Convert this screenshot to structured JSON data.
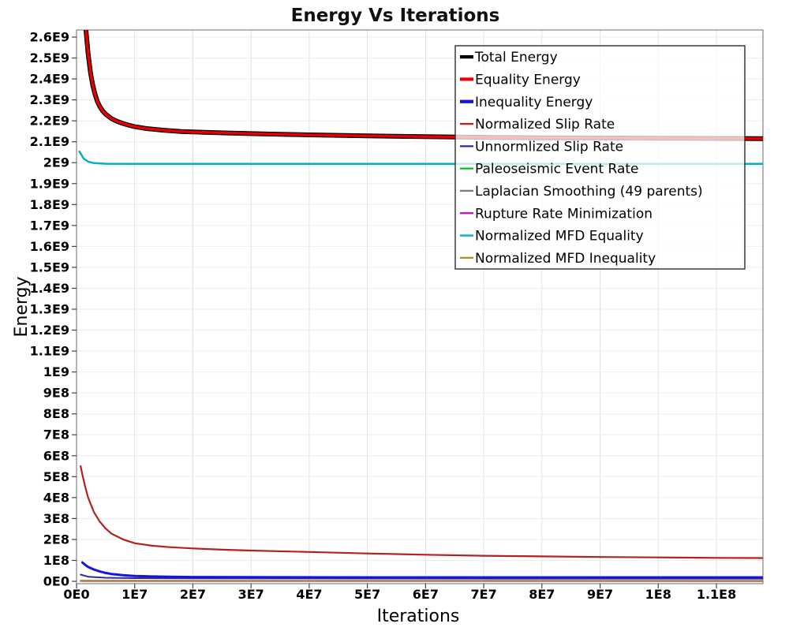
{
  "chart_data": {
    "type": "line",
    "title": "Energy Vs Iterations",
    "xlabel": "Iterations",
    "ylabel": "Energy",
    "xlim": [
      0,
      118000000.0
    ],
    "ylim": [
      -11300000.0,
      2634000000.0
    ],
    "grid": true,
    "legend_position": "top-right-inside",
    "x_ticks": [
      {
        "v": 0,
        "label": "0E0"
      },
      {
        "v": 10000000.0,
        "label": "1E7"
      },
      {
        "v": 20000000.0,
        "label": "2E7"
      },
      {
        "v": 30000000.0,
        "label": "3E7"
      },
      {
        "v": 40000000.0,
        "label": "4E7"
      },
      {
        "v": 50000000.0,
        "label": "5E7"
      },
      {
        "v": 60000000.0,
        "label": "6E7"
      },
      {
        "v": 70000000.0,
        "label": "7E7"
      },
      {
        "v": 80000000.0,
        "label": "8E7"
      },
      {
        "v": 90000000.0,
        "label": "9E7"
      },
      {
        "v": 100000000.0,
        "label": "1E8"
      },
      {
        "v": 110000000.0,
        "label": "1.1E8"
      }
    ],
    "y_ticks": [
      {
        "v": 0,
        "label": "0E0"
      },
      {
        "v": 100000000.0,
        "label": "1E8"
      },
      {
        "v": 200000000.0,
        "label": "2E8"
      },
      {
        "v": 300000000.0,
        "label": "3E8"
      },
      {
        "v": 400000000.0,
        "label": "4E8"
      },
      {
        "v": 500000000.0,
        "label": "5E8"
      },
      {
        "v": 600000000.0,
        "label": "6E8"
      },
      {
        "v": 700000000.0,
        "label": "7E8"
      },
      {
        "v": 800000000.0,
        "label": "8E8"
      },
      {
        "v": 900000000.0,
        "label": "9E8"
      },
      {
        "v": 1000000000.0,
        "label": "1E9"
      },
      {
        "v": 1100000000.0,
        "label": "1.1E9"
      },
      {
        "v": 1200000000.0,
        "label": "1.2E9"
      },
      {
        "v": 1300000000.0,
        "label": "1.3E9"
      },
      {
        "v": 1400000000.0,
        "label": "1.4E9"
      },
      {
        "v": 1500000000.0,
        "label": "1.5E9"
      },
      {
        "v": 1600000000.0,
        "label": "1.6E9"
      },
      {
        "v": 1700000000.0,
        "label": "1.7E9"
      },
      {
        "v": 1800000000.0,
        "label": "1.8E9"
      },
      {
        "v": 1900000000.0,
        "label": "1.9E9"
      },
      {
        "v": 2000000000.0,
        "label": "2E9"
      },
      {
        "v": 2100000000.0,
        "label": "2.1E9"
      },
      {
        "v": 2200000000.0,
        "label": "2.2E9"
      },
      {
        "v": 2300000000.0,
        "label": "2.3E9"
      },
      {
        "v": 2400000000.0,
        "label": "2.4E9"
      },
      {
        "v": 2500000000.0,
        "label": "2.5E9"
      },
      {
        "v": 2600000000.0,
        "label": "2.6E9"
      }
    ],
    "series": [
      {
        "name": "Total Energy",
        "color": "#000000",
        "width": 6,
        "zorder": 8,
        "points": [
          [
            1000000.0,
            2920000000.0
          ],
          [
            1300000.0,
            2760000000.0
          ],
          [
            1600000.0,
            2640000000.0
          ],
          [
            2000000.0,
            2520000000.0
          ],
          [
            2400000.0,
            2430000000.0
          ],
          [
            2800000.0,
            2370000000.0
          ],
          [
            3200000.0,
            2325000000.0
          ],
          [
            3600000.0,
            2292000000.0
          ],
          [
            4000000.0,
            2268000000.0
          ],
          [
            4500000.0,
            2247000000.0
          ],
          [
            5000000.0,
            2232000000.0
          ],
          [
            6000000.0,
            2211000000.0
          ],
          [
            7000000.0,
            2197000000.0
          ],
          [
            8000000.0,
            2187000000.0
          ],
          [
            9000000.0,
            2179000000.0
          ],
          [
            10000000.0,
            2172000000.0
          ],
          [
            12000000.0,
            2163000000.0
          ],
          [
            15000000.0,
            2155000000.0
          ],
          [
            18000000.0,
            2149000000.0
          ],
          [
            22000000.0,
            2145000000.0
          ],
          [
            26000000.0,
            2142000000.0
          ],
          [
            30000000.0,
            2139000000.0
          ],
          [
            35000000.0,
            2136000000.0
          ],
          [
            40000000.0,
            2133000000.0
          ],
          [
            50000000.0,
            2128000000.0
          ],
          [
            60000000.0,
            2124000000.0
          ],
          [
            70000000.0,
            2121000000.0
          ],
          [
            80000000.0,
            2119000000.0
          ],
          [
            90000000.0,
            2118000000.0
          ],
          [
            100000000.0,
            2117000000.0
          ],
          [
            110000000.0,
            2116000000.0
          ],
          [
            118000000.0,
            2115000000.0
          ]
        ]
      },
      {
        "name": "Equality Energy",
        "color": "#e80000",
        "width": 3.5,
        "zorder": 9,
        "points": [
          [
            1000000.0,
            2920000000.0
          ],
          [
            1300000.0,
            2760000000.0
          ],
          [
            1600000.0,
            2640000000.0
          ],
          [
            2000000.0,
            2520000000.0
          ],
          [
            2400000.0,
            2430000000.0
          ],
          [
            2800000.0,
            2370000000.0
          ],
          [
            3200000.0,
            2325000000.0
          ],
          [
            3600000.0,
            2292000000.0
          ],
          [
            4000000.0,
            2268000000.0
          ],
          [
            4500000.0,
            2247000000.0
          ],
          [
            5000000.0,
            2232000000.0
          ],
          [
            6000000.0,
            2211000000.0
          ],
          [
            7000000.0,
            2197000000.0
          ],
          [
            8000000.0,
            2187000000.0
          ],
          [
            9000000.0,
            2179000000.0
          ],
          [
            10000000.0,
            2172000000.0
          ],
          [
            12000000.0,
            2163000000.0
          ],
          [
            15000000.0,
            2155000000.0
          ],
          [
            18000000.0,
            2149000000.0
          ],
          [
            22000000.0,
            2145000000.0
          ],
          [
            26000000.0,
            2142000000.0
          ],
          [
            30000000.0,
            2139000000.0
          ],
          [
            35000000.0,
            2136000000.0
          ],
          [
            40000000.0,
            2133000000.0
          ],
          [
            50000000.0,
            2128000000.0
          ],
          [
            60000000.0,
            2124000000.0
          ],
          [
            70000000.0,
            2121000000.0
          ],
          [
            80000000.0,
            2119000000.0
          ],
          [
            90000000.0,
            2118000000.0
          ],
          [
            100000000.0,
            2117000000.0
          ],
          [
            110000000.0,
            2116000000.0
          ],
          [
            118000000.0,
            2115000000.0
          ]
        ]
      },
      {
        "name": "Inequality Energy",
        "color": "#1414dc",
        "width": 3,
        "zorder": 7,
        "points": [
          [
            1000000.0,
            90000000.0
          ],
          [
            1500000.0,
            78000000.0
          ],
          [
            2000000.0,
            69000000.0
          ],
          [
            3000000.0,
            56000000.0
          ],
          [
            4000000.0,
            47000000.0
          ],
          [
            5000000.0,
            40000000.0
          ],
          [
            6000000.0,
            35000000.0
          ],
          [
            8000000.0,
            29000000.0
          ],
          [
            10000000.0,
            25500000.0
          ],
          [
            13000000.0,
            23000000.0
          ],
          [
            16000000.0,
            21500000.0
          ],
          [
            20000000.0,
            20500000.0
          ],
          [
            30000000.0,
            19500000.0
          ],
          [
            50000000.0,
            19000000.0
          ],
          [
            80000000.0,
            18800000.0
          ],
          [
            118000000.0,
            18700000.0
          ]
        ]
      },
      {
        "name": "Normalized Slip Rate",
        "color": "#b22222",
        "width": 2.2,
        "zorder": 6,
        "points": [
          [
            700000.0,
            550000000.0
          ],
          [
            1000000.0,
            510000000.0
          ],
          [
            1500000.0,
            450000000.0
          ],
          [
            2000000.0,
            400000000.0
          ],
          [
            3000000.0,
            330000000.0
          ],
          [
            4000000.0,
            285000000.0
          ],
          [
            5000000.0,
            252000000.0
          ],
          [
            6000000.0,
            228000000.0
          ],
          [
            8000000.0,
            200000000.0
          ],
          [
            10000000.0,
            182000000.0
          ],
          [
            13000000.0,
            170000000.0
          ],
          [
            16000000.0,
            163000000.0
          ],
          [
            20000000.0,
            157000000.0
          ],
          [
            25000000.0,
            151000000.0
          ],
          [
            30000000.0,
            147000000.0
          ],
          [
            40000000.0,
            140000000.0
          ],
          [
            50000000.0,
            133000000.0
          ],
          [
            60000000.0,
            127000000.0
          ],
          [
            70000000.0,
            122000000.0
          ],
          [
            80000000.0,
            119000000.0
          ],
          [
            90000000.0,
            116000000.0
          ],
          [
            100000000.0,
            114000000.0
          ],
          [
            110000000.0,
            112000000.0
          ],
          [
            118000000.0,
            111000000.0
          ]
        ]
      },
      {
        "name": "Unnormlized Slip Rate",
        "color": "#2a2a9c",
        "width": 2,
        "zorder": 5,
        "points": [
          [
            700000.0,
            32000000.0
          ],
          [
            2000000.0,
            22000000.0
          ],
          [
            5000000.0,
            17000000.0
          ],
          [
            10000000.0,
            15000000.0
          ],
          [
            20000000.0,
            14000000.0
          ],
          [
            40000000.0,
            13500000.0
          ],
          [
            80000000.0,
            13000000.0
          ],
          [
            118000000.0,
            13000000.0
          ]
        ]
      },
      {
        "name": "Paleoseismic Event Rate",
        "color": "#00be28",
        "width": 2,
        "zorder": 1,
        "points": [
          [
            700000.0,
            2500000.0
          ],
          [
            118000000.0,
            2000000.0
          ]
        ]
      },
      {
        "name": "Laplacian Smoothing (49 parents)",
        "color": "#7f7f7f",
        "width": 2,
        "zorder": 0,
        "points": [
          [
            700000.0,
            1500000.0
          ],
          [
            118000000.0,
            1200000.0
          ]
        ]
      },
      {
        "name": "Rupture Rate Minimization",
        "color": "#cc00cc",
        "width": 2,
        "zorder": 2,
        "points": [
          [
            700000.0,
            2000000.0
          ],
          [
            118000000.0,
            1800000.0
          ]
        ]
      },
      {
        "name": "Normalized MFD Equality",
        "color": "#00b2c3",
        "width": 2.5,
        "zorder": 4,
        "points": [
          [
            500000.0,
            2053000000.0
          ],
          [
            800000.0,
            2040000000.0
          ],
          [
            1200000.0,
            2020000000.0
          ],
          [
            2000000.0,
            2005000000.0
          ],
          [
            3000000.0,
            1998000000.0
          ],
          [
            5000000.0,
            1995000000.0
          ],
          [
            10000000.0,
            1994000000.0
          ],
          [
            20000000.0,
            1994000000.0
          ],
          [
            118000000.0,
            1994000000.0
          ]
        ]
      },
      {
        "name": "Normalized MFD Inequality",
        "color": "#be8a1e",
        "width": 2,
        "zorder": 3,
        "points": [
          [
            700000.0,
            3500000.0
          ],
          [
            118000000.0,
            3500000.0
          ]
        ]
      }
    ]
  }
}
